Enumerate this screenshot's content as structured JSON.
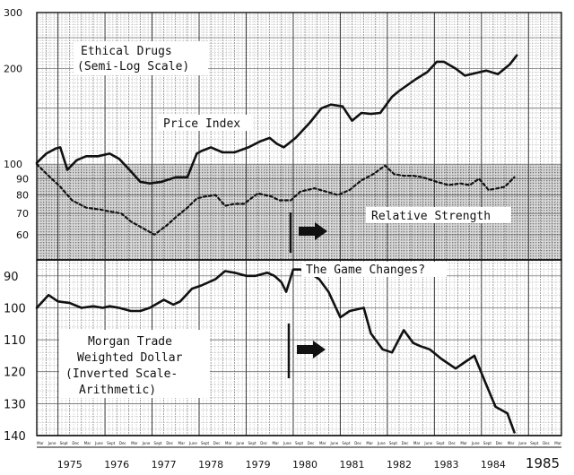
{
  "chart_data": [
    {
      "type": "line",
      "title": "Ethical Drugs",
      "subtitle": "(Semi-Log Scale)",
      "ylabel": "",
      "yscale": "log",
      "ylim": [
        50,
        300
      ],
      "grid": true,
      "y_ticks_main": [
        {
          "label": "300",
          "v": 300
        },
        {
          "label": "200",
          "v": 200
        },
        {
          "label": "100",
          "v": 100
        }
      ],
      "y_ticks_rel": [
        {
          "label": "90",
          "v": 90
        },
        {
          "label": "80",
          "v": 80
        },
        {
          "label": "70",
          "v": 70
        },
        {
          "label": "60",
          "v": 60
        }
      ],
      "series": [
        {
          "name": "Price Index",
          "style": "solid",
          "x": [
            1974.55,
            1974.75,
            1974.95,
            1975.05,
            1975.2,
            1975.4,
            1975.6,
            1975.85,
            1976.1,
            1976.3,
            1976.55,
            1976.75,
            1976.95,
            1977.2,
            1977.5,
            1977.75,
            1977.95,
            1978.05,
            1978.25,
            1978.5,
            1978.75,
            1979.05,
            1979.3,
            1979.5,
            1979.65,
            1979.8,
            1980.05,
            1980.35,
            1980.6,
            1980.8,
            1981.05,
            1981.25,
            1981.45,
            1981.65,
            1981.85,
            1982.1,
            1982.25,
            1982.6,
            1982.85,
            1983.05,
            1983.2,
            1983.45,
            1983.65,
            1983.85,
            1984.1,
            1984.35,
            1984.6,
            1984.75
          ],
          "y": [
            101,
            108,
            112,
            113,
            96,
            103,
            106,
            106,
            108,
            104,
            95,
            88,
            87,
            88,
            91,
            91,
            108,
            110,
            113,
            109,
            109,
            113,
            118,
            121,
            116,
            113,
            121,
            135,
            150,
            154,
            152,
            137,
            145,
            144,
            145,
            163,
            170,
            185,
            195,
            210,
            210,
            200,
            190,
            193,
            197,
            192,
            206,
            220
          ]
        },
        {
          "name": "Relative Strength",
          "style": "dashed",
          "x": [
            1974.55,
            1974.8,
            1975.05,
            1975.3,
            1975.6,
            1975.9,
            1976.1,
            1976.35,
            1976.55,
            1976.8,
            1977.05,
            1977.3,
            1977.5,
            1977.75,
            1977.95,
            1978.1,
            1978.35,
            1978.55,
            1978.75,
            1978.95,
            1979.25,
            1979.55,
            1979.7,
            1979.95,
            1980.15,
            1980.45,
            1980.7,
            1980.95,
            1981.2,
            1981.45,
            1981.7,
            1981.95,
            1982.15,
            1982.35,
            1982.55,
            1982.75,
            1983.05,
            1983.3,
            1983.55,
            1983.75,
            1983.95,
            1984.15,
            1984.35,
            1984.5,
            1984.7
          ],
          "y": [
            100,
            92,
            85,
            77,
            73,
            72,
            71,
            70,
            66,
            63,
            60,
            64,
            68,
            73,
            78,
            79,
            80,
            74,
            75,
            75,
            81,
            79,
            77,
            77,
            82,
            84,
            82,
            80,
            83,
            89,
            93,
            99,
            93,
            92,
            92,
            91,
            88,
            86,
            87,
            86,
            90,
            83,
            84,
            85,
            91
          ]
        }
      ],
      "annotations": [
        "Price Index",
        "Relative Strength"
      ]
    },
    {
      "type": "line",
      "title": "Morgan Trade Weighted Dollar",
      "subtitle": "(Inverted Scale- Arithmetic)",
      "yscale": "linear",
      "inverted": true,
      "ylim": [
        85,
        140
      ],
      "grid": true,
      "y_ticks": [
        {
          "label": "90",
          "v": 90
        },
        {
          "label": "100",
          "v": 100
        },
        {
          "label": "110",
          "v": 110
        },
        {
          "label": "120",
          "v": 120
        },
        {
          "label": "130",
          "v": 130
        },
        {
          "label": "140",
          "v": 140
        }
      ],
      "series": [
        {
          "name": "",
          "style": "solid",
          "x": [
            1974.55,
            1974.8,
            1975.0,
            1975.25,
            1975.5,
            1975.75,
            1975.95,
            1976.1,
            1976.3,
            1976.55,
            1976.75,
            1976.95,
            1977.25,
            1977.45,
            1977.6,
            1977.85,
            1978.05,
            1978.35,
            1978.55,
            1978.75,
            1979.0,
            1979.2,
            1979.45,
            1979.6,
            1979.75,
            1979.85,
            1980.0,
            1980.15,
            1980.35,
            1980.55,
            1980.75,
            1981.0,
            1981.2,
            1981.5,
            1981.65,
            1981.9,
            1982.1,
            1982.35,
            1982.55,
            1982.7,
            1982.9,
            1983.15,
            1983.45,
            1983.65,
            1983.85,
            1984.1,
            1984.3,
            1984.55,
            1984.7
          ],
          "y": [
            100,
            96,
            98,
            98.5,
            100,
            99.5,
            100,
            99.5,
            100,
            101,
            101,
            100,
            97.5,
            99,
            98,
            94,
            93,
            91,
            88.5,
            89,
            90,
            90,
            89,
            90,
            92,
            95,
            88,
            88,
            89,
            91,
            95,
            103,
            101,
            100,
            108,
            113,
            114,
            107,
            111,
            112,
            113,
            116,
            119,
            117,
            115,
            124,
            131,
            133,
            139
          ]
        }
      ]
    }
  ],
  "x_axis": {
    "xlim": [
      1974.55,
      1985.7
    ],
    "year_labels": [
      {
        "label": "1975",
        "x": 1975.25
      },
      {
        "label": "1976",
        "x": 1976.25
      },
      {
        "label": "1977",
        "x": 1977.25
      },
      {
        "label": "1978",
        "x": 1978.25
      },
      {
        "label": "1979",
        "x": 1979.25
      },
      {
        "label": "1980",
        "x": 1980.25
      },
      {
        "label": "1981",
        "x": 1981.25
      },
      {
        "label": "1982",
        "x": 1982.25
      },
      {
        "label": "1983",
        "x": 1983.25
      },
      {
        "label": "1984",
        "x": 1984.25
      },
      {
        "label": "1985",
        "x": 1985.3
      }
    ],
    "month_labels": [
      "Mar",
      "June",
      "Sept",
      "Dec"
    ]
  },
  "labels": {
    "drug_title_1": "Ethical Drugs",
    "drug_title_2": "(Semi-Log Scale)",
    "price_index": "Price Index",
    "relative_strength": "Relative Strength",
    "game_changes": "The Game Changes?",
    "morgan_1": "Morgan Trade",
    "morgan_2": "Weighted Dollar",
    "morgan_3": "(Inverted Scale-",
    "morgan_4": "Arithmetic)"
  }
}
